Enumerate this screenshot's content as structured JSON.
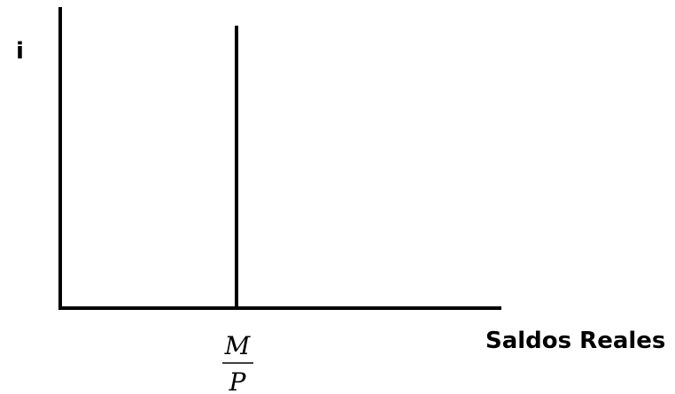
{
  "y_axis_label": "i",
  "x_axis_label": "Saldos Reales",
  "supply_label": {
    "numerator": "M",
    "denominator": "P"
  },
  "colors": {
    "line": "#000000",
    "background": "#ffffff"
  }
}
